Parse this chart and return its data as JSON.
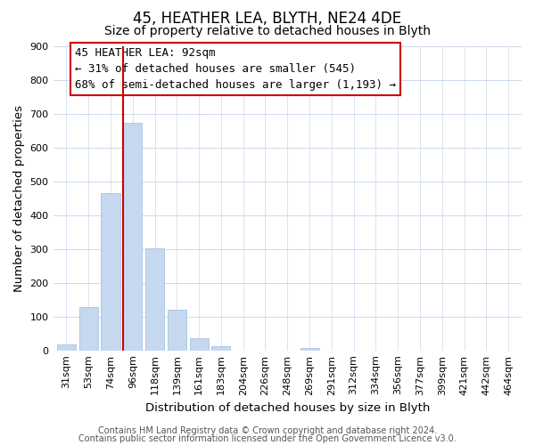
{
  "title": "45, HEATHER LEA, BLYTH, NE24 4DE",
  "subtitle": "Size of property relative to detached houses in Blyth",
  "xlabel": "Distribution of detached houses by size in Blyth",
  "ylabel": "Number of detached properties",
  "bar_labels": [
    "31sqm",
    "53sqm",
    "74sqm",
    "96sqm",
    "118sqm",
    "139sqm",
    "161sqm",
    "183sqm",
    "204sqm",
    "226sqm",
    "248sqm",
    "269sqm",
    "291sqm",
    "312sqm",
    "334sqm",
    "356sqm",
    "377sqm",
    "399sqm",
    "421sqm",
    "442sqm",
    "464sqm"
  ],
  "bar_values": [
    18,
    127,
    465,
    672,
    302,
    120,
    37,
    13,
    0,
    0,
    0,
    8,
    0,
    0,
    0,
    0,
    0,
    0,
    0,
    0,
    0
  ],
  "bar_color": "#c5d8f0",
  "bar_edge_color": "#a8c4e0",
  "vline_color": "#cc0000",
  "vline_index": 3,
  "ylim": [
    0,
    900
  ],
  "yticks": [
    0,
    100,
    200,
    300,
    400,
    500,
    600,
    700,
    800,
    900
  ],
  "ann_line1": "45 HEATHER LEA: 92sqm",
  "ann_line2": "← 31% of detached houses are smaller (545)",
  "ann_line3": "68% of semi-detached houses are larger (1,193) →",
  "footer_line1": "Contains HM Land Registry data © Crown copyright and database right 2024.",
  "footer_line2": "Contains public sector information licensed under the Open Government Licence v3.0.",
  "bg_color": "#ffffff",
  "grid_color": "#ccd8ec",
  "title_fontsize": 12,
  "subtitle_fontsize": 10,
  "axis_label_fontsize": 9.5,
  "tick_fontsize": 8,
  "ann_fontsize": 9,
  "footer_fontsize": 7
}
